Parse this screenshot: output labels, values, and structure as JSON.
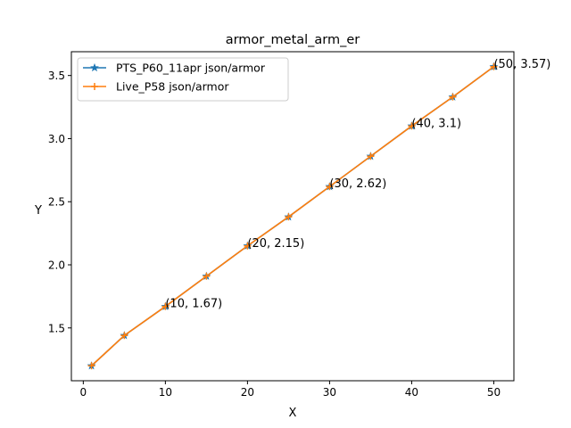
{
  "chart_data": {
    "type": "line",
    "title": "armor_metal_arm_er",
    "xlabel": "X",
    "ylabel": "Y",
    "xlim": [
      -1.45,
      52.45
    ],
    "ylim": [
      1.0815,
      3.6885
    ],
    "xticks": [
      0,
      10,
      20,
      30,
      40,
      50
    ],
    "yticks": [
      1.5,
      2.0,
      2.5,
      3.0,
      3.5
    ],
    "grid": false,
    "legend_position": "upper-left",
    "x": [
      1,
      5,
      10,
      15,
      20,
      25,
      30,
      35,
      40,
      45,
      50
    ],
    "series": [
      {
        "name": "PTS_P60_11apr json/armor",
        "color": "#1f77b4",
        "marker": "star",
        "values": [
          1.2,
          1.44,
          1.67,
          1.91,
          2.15,
          2.38,
          2.62,
          2.86,
          3.1,
          3.33,
          3.57
        ]
      },
      {
        "name": "Live_P58 json/armor",
        "color": "#ff7f0e",
        "marker": "plus",
        "values": [
          1.2,
          1.44,
          1.67,
          1.91,
          2.15,
          2.38,
          2.62,
          2.86,
          3.1,
          3.33,
          3.57
        ]
      }
    ],
    "annotations": [
      {
        "x": 10,
        "y": 1.67,
        "text": "(10, 1.67)"
      },
      {
        "x": 20,
        "y": 2.15,
        "text": "(20, 2.15)"
      },
      {
        "x": 30,
        "y": 2.62,
        "text": "(30, 2.62)"
      },
      {
        "x": 40,
        "y": 3.1,
        "text": "(40, 3.1)"
      },
      {
        "x": 50,
        "y": 3.57,
        "text": "(50, 3.57)"
      }
    ]
  }
}
